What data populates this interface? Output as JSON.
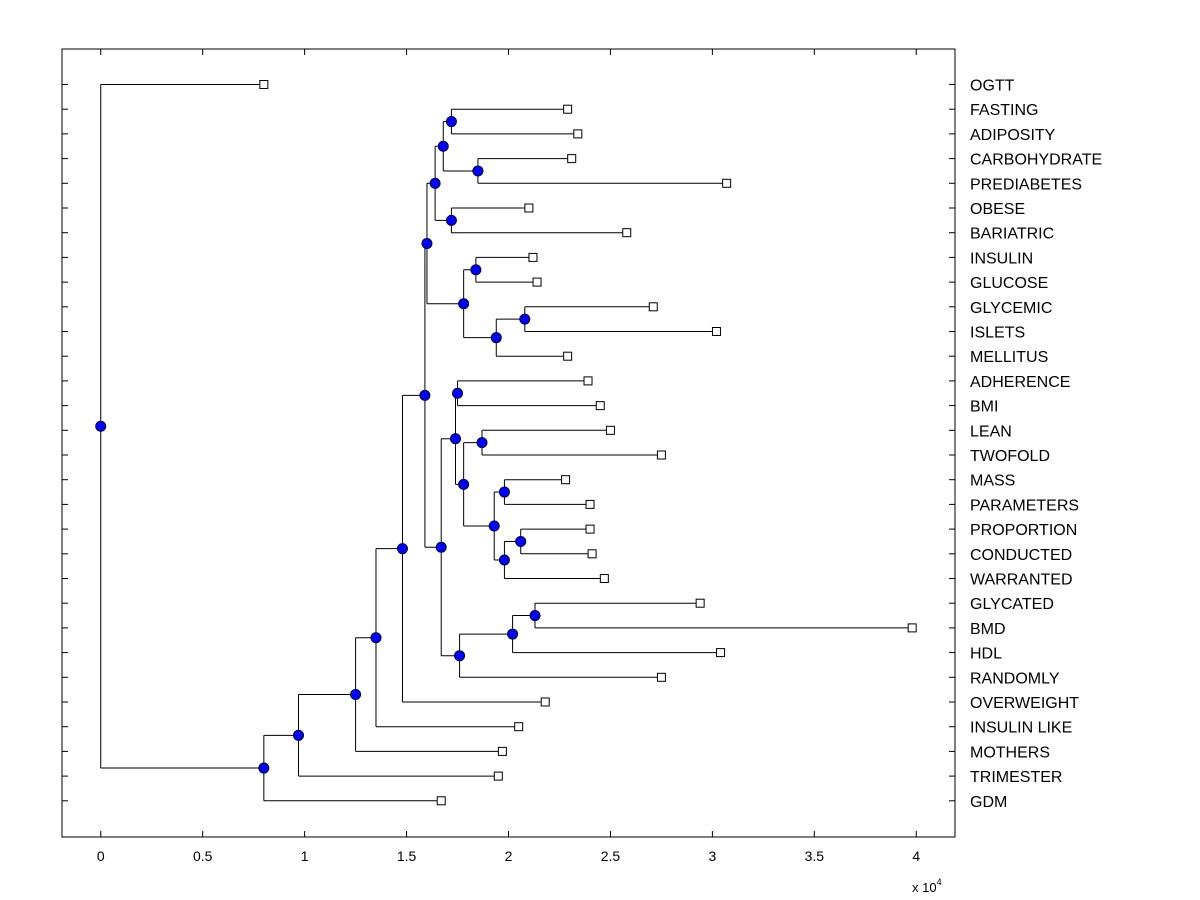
{
  "chart_data": {
    "type": "dendrogram",
    "orientation": "horizontal",
    "x_axis": {
      "ticks": [
        0,
        0.5,
        1,
        1.5,
        2,
        2.5,
        3,
        3.5,
        4
      ],
      "tick_labels": [
        "0",
        "0.5",
        "1",
        "1.5",
        "2",
        "2.5",
        "3",
        "3.5",
        "4"
      ],
      "xlim": [
        -0.19,
        4.19
      ],
      "multiplier_base": "x 10",
      "multiplier_exponent": "4"
    },
    "leaves": [
      {
        "label": "OGTT",
        "value": 0.8
      },
      {
        "label": "FASTING",
        "value": 2.29
      },
      {
        "label": "ADIPOSITY",
        "value": 2.34
      },
      {
        "label": "CARBOHYDRATE",
        "value": 2.31
      },
      {
        "label": "PREDIABETES",
        "value": 3.07
      },
      {
        "label": "OBESE",
        "value": 2.1
      },
      {
        "label": "BARIATRIC",
        "value": 2.58
      },
      {
        "label": "INSULIN",
        "value": 2.12
      },
      {
        "label": "GLUCOSE",
        "value": 2.14
      },
      {
        "label": "GLYCEMIC",
        "value": 2.71
      },
      {
        "label": "ISLETS",
        "value": 3.02
      },
      {
        "label": "MELLITUS",
        "value": 2.29
      },
      {
        "label": "ADHERENCE",
        "value": 2.39
      },
      {
        "label": "BMI",
        "value": 2.45
      },
      {
        "label": "LEAN",
        "value": 2.5
      },
      {
        "label": "TWOFOLD",
        "value": 2.75
      },
      {
        "label": "MASS",
        "value": 2.28
      },
      {
        "label": "PARAMETERS",
        "value": 2.4
      },
      {
        "label": "PROPORTION",
        "value": 2.4
      },
      {
        "label": "CONDUCTED",
        "value": 2.41
      },
      {
        "label": "WARRANTED",
        "value": 2.47
      },
      {
        "label": "GLYCATED",
        "value": 2.94
      },
      {
        "label": "BMD",
        "value": 3.98
      },
      {
        "label": "HDL",
        "value": 3.04
      },
      {
        "label": "RANDOMLY",
        "value": 2.75
      },
      {
        "label": "OVERWEIGHT",
        "value": 2.18
      },
      {
        "label": "INSULIN LIKE",
        "value": 2.05
      },
      {
        "label": "MOTHERS",
        "value": 1.97
      },
      {
        "label": "TRIMESTER",
        "value": 1.95
      },
      {
        "label": "GDM",
        "value": 1.67
      }
    ],
    "merges": [
      {
        "id": "n1",
        "children": [
          "L1",
          "L2"
        ],
        "value": 1.72
      },
      {
        "id": "n2",
        "children": [
          "L3",
          "L4"
        ],
        "value": 1.85
      },
      {
        "id": "n3",
        "children": [
          "n1",
          "n2"
        ],
        "value": 1.68
      },
      {
        "id": "n4",
        "children": [
          "L5",
          "L6"
        ],
        "value": 1.72
      },
      {
        "id": "n5",
        "children": [
          "n3",
          "n4"
        ],
        "value": 1.64
      },
      {
        "id": "n6",
        "children": [
          "L7",
          "L8"
        ],
        "value": 1.84
      },
      {
        "id": "n7",
        "children": [
          "L9",
          "L10"
        ],
        "value": 2.08
      },
      {
        "id": "n8",
        "children": [
          "n7",
          "L11"
        ],
        "value": 1.94
      },
      {
        "id": "n9",
        "children": [
          "n6",
          "n8"
        ],
        "value": 1.78
      },
      {
        "id": "n10",
        "children": [
          "n5",
          "n9"
        ],
        "value": 1.6
      },
      {
        "id": "n11",
        "children": [
          "L12",
          "L13"
        ],
        "value": 1.75
      },
      {
        "id": "n12",
        "children": [
          "L14",
          "L15"
        ],
        "value": 1.87
      },
      {
        "id": "n13",
        "children": [
          "L16",
          "L17"
        ],
        "value": 1.98
      },
      {
        "id": "n14",
        "children": [
          "L18",
          "L19"
        ],
        "value": 2.06
      },
      {
        "id": "n15",
        "children": [
          "n14",
          "L20"
        ],
        "value": 1.98
      },
      {
        "id": "n16",
        "children": [
          "n13",
          "n15"
        ],
        "value": 1.93
      },
      {
        "id": "n17",
        "children": [
          "n12",
          "n16"
        ],
        "value": 1.78
      },
      {
        "id": "n18",
        "children": [
          "n11",
          "n17"
        ],
        "value": 1.74
      },
      {
        "id": "n19",
        "children": [
          "L21",
          "L22"
        ],
        "value": 2.13
      },
      {
        "id": "n20",
        "children": [
          "n19",
          "L23"
        ],
        "value": 2.02
      },
      {
        "id": "n21",
        "children": [
          "n20",
          "L24"
        ],
        "value": 1.76
      },
      {
        "id": "n22",
        "children": [
          "n18",
          "n21"
        ],
        "value": 1.67
      },
      {
        "id": "n23",
        "children": [
          "n10",
          "n22"
        ],
        "value": 1.59
      },
      {
        "id": "n24",
        "children": [
          "n23",
          "L25"
        ],
        "value": 1.48
      },
      {
        "id": "n25",
        "children": [
          "n24",
          "L26"
        ],
        "value": 1.35
      },
      {
        "id": "n26",
        "children": [
          "n25",
          "L27"
        ],
        "value": 1.25
      },
      {
        "id": "n27",
        "children": [
          "n26",
          "L28"
        ],
        "value": 0.97
      },
      {
        "id": "n28",
        "children": [
          "n27",
          "L29"
        ],
        "value": 0.8
      },
      {
        "id": "n29",
        "children": [
          "L0",
          "n28"
        ],
        "value": 0.0
      }
    ],
    "colors": {
      "node_fill": "#0000ff",
      "node_stroke": "#000033",
      "leaf_fill": "#ffffff",
      "line": "#000000"
    }
  }
}
